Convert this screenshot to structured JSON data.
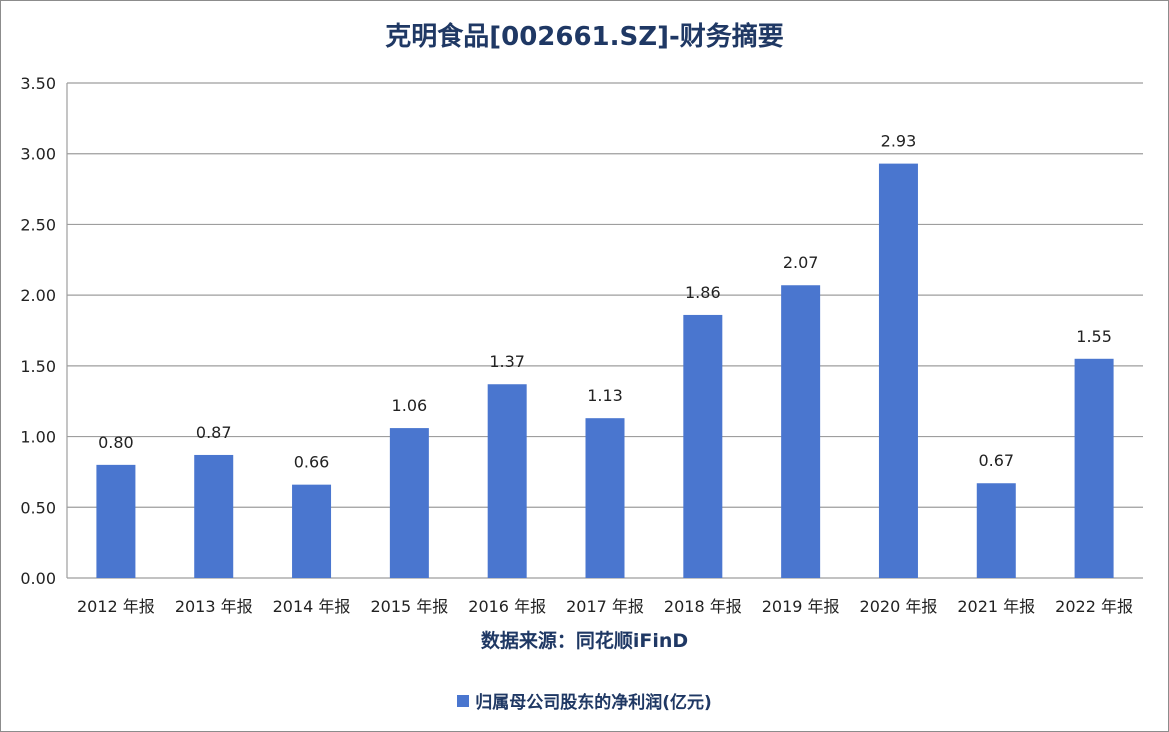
{
  "title": "克明食品[002661.SZ]-财务摘要",
  "source": "数据来源：同花顺iFinD",
  "colors": {
    "bar": "#4a76cf",
    "title": "#1f3864",
    "grid": "#9e9e9e",
    "text": "#222222"
  },
  "chart_data": {
    "type": "bar",
    "categories": [
      "2012 年报",
      "2013 年报",
      "2014 年报",
      "2015 年报",
      "2016 年报",
      "2017 年报",
      "2018 年报",
      "2019 年报",
      "2020 年报",
      "2021 年报",
      "2022 年报"
    ],
    "series": [
      {
        "name": "归属母公司股东的净利润(亿元)",
        "values": [
          0.8,
          0.87,
          0.66,
          1.06,
          1.37,
          1.13,
          1.86,
          2.07,
          2.93,
          0.67,
          1.55
        ]
      }
    ],
    "data_labels": [
      "0.80",
      "0.87",
      "0.66",
      "1.06",
      "1.37",
      "1.13",
      "1.86",
      "2.07",
      "2.93",
      "0.67",
      "1.55"
    ],
    "ylim": [
      0,
      3.5
    ],
    "yticks": [
      "0.00",
      "0.50",
      "1.00",
      "1.50",
      "2.00",
      "2.50",
      "3.00",
      "3.50"
    ],
    "xlabel": "",
    "ylabel": "",
    "grid": true,
    "legend": "bottom"
  }
}
